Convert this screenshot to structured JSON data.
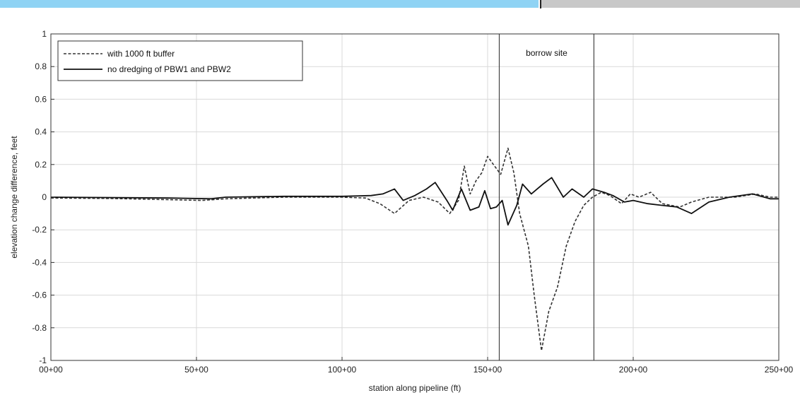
{
  "chart_data": {
    "type": "line",
    "xlabel": "station along pipeline (ft)",
    "ylabel": "elevation change difference, feet",
    "xlim": [
      0,
      25000
    ],
    "ylim": [
      -1,
      1
    ],
    "x_ticks": [
      {
        "value": 0,
        "label": "00+00"
      },
      {
        "value": 5000,
        "label": "50+00"
      },
      {
        "value": 10000,
        "label": "100+00"
      },
      {
        "value": 15000,
        "label": "150+00"
      },
      {
        "value": 20000,
        "label": "200+00"
      },
      {
        "value": 25000,
        "label": "250+00"
      }
    ],
    "y_ticks": [
      {
        "value": 1,
        "label": "1"
      },
      {
        "value": 0.8,
        "label": "0.8"
      },
      {
        "value": 0.6,
        "label": "0.6"
      },
      {
        "value": 0.4,
        "label": "0.4"
      },
      {
        "value": 0.2,
        "label": "0.2"
      },
      {
        "value": 0,
        "label": "0"
      },
      {
        "value": -0.2,
        "label": "-0.2"
      },
      {
        "value": -0.4,
        "label": "-0.4"
      },
      {
        "value": -0.6,
        "label": "-0.6"
      },
      {
        "value": -0.8,
        "label": "-0.8"
      },
      {
        "value": -1,
        "label": "-1"
      }
    ],
    "grid": true,
    "legend_position": "top-left",
    "annotations": [
      {
        "text": "borrow site",
        "x_start": 15400,
        "x_end": 18650
      }
    ],
    "vertical_lines": [
      15400,
      18650
    ],
    "series": [
      {
        "name": "with 1000 ft buffer",
        "style": "dashed",
        "color": "#333333",
        "points": [
          [
            0,
            -0.005
          ],
          [
            2000,
            -0.008
          ],
          [
            4000,
            -0.015
          ],
          [
            5200,
            -0.02
          ],
          [
            6000,
            -0.01
          ],
          [
            8000,
            0.0
          ],
          [
            10000,
            0.0
          ],
          [
            10800,
            -0.005
          ],
          [
            11300,
            -0.04
          ],
          [
            11800,
            -0.1
          ],
          [
            12300,
            -0.02
          ],
          [
            12800,
            0.0
          ],
          [
            13300,
            -0.03
          ],
          [
            13700,
            -0.1
          ],
          [
            14000,
            -0.02
          ],
          [
            14200,
            0.19
          ],
          [
            14400,
            0.02
          ],
          [
            14600,
            0.1
          ],
          [
            14800,
            0.15
          ],
          [
            15000,
            0.25
          ],
          [
            15200,
            0.2
          ],
          [
            15450,
            0.14
          ],
          [
            15700,
            0.3
          ],
          [
            15900,
            0.15
          ],
          [
            16100,
            -0.1
          ],
          [
            16400,
            -0.3
          ],
          [
            16600,
            -0.6
          ],
          [
            16850,
            -0.94
          ],
          [
            17100,
            -0.7
          ],
          [
            17400,
            -0.55
          ],
          [
            17700,
            -0.3
          ],
          [
            18000,
            -0.15
          ],
          [
            18300,
            -0.05
          ],
          [
            18600,
            0.0
          ],
          [
            18900,
            0.03
          ],
          [
            19200,
            0.01
          ],
          [
            19600,
            -0.04
          ],
          [
            19900,
            0.02
          ],
          [
            20200,
            0.0
          ],
          [
            20600,
            0.03
          ],
          [
            21000,
            -0.04
          ],
          [
            21600,
            -0.06
          ],
          [
            22000,
            -0.03
          ],
          [
            22600,
            0.0
          ],
          [
            23500,
            0.0
          ],
          [
            24200,
            0.02
          ],
          [
            24700,
            0.0
          ],
          [
            25000,
            0.0
          ]
        ]
      },
      {
        "name": "no dredging of PBW1 and PBW2",
        "style": "solid",
        "color": "#111111",
        "points": [
          [
            0,
            0.0
          ],
          [
            4000,
            -0.005
          ],
          [
            5500,
            -0.01
          ],
          [
            6000,
            0.0
          ],
          [
            8000,
            0.005
          ],
          [
            10000,
            0.005
          ],
          [
            11000,
            0.01
          ],
          [
            11400,
            0.02
          ],
          [
            11800,
            0.05
          ],
          [
            12100,
            -0.02
          ],
          [
            12500,
            0.01
          ],
          [
            12900,
            0.05
          ],
          [
            13200,
            0.09
          ],
          [
            13600,
            -0.02
          ],
          [
            13800,
            -0.08
          ],
          [
            14100,
            0.05
          ],
          [
            14400,
            -0.08
          ],
          [
            14700,
            -0.06
          ],
          [
            14900,
            0.04
          ],
          [
            15100,
            -0.07
          ],
          [
            15300,
            -0.06
          ],
          [
            15500,
            -0.02
          ],
          [
            15700,
            -0.17
          ],
          [
            16000,
            -0.05
          ],
          [
            16200,
            0.08
          ],
          [
            16500,
            0.02
          ],
          [
            16900,
            0.08
          ],
          [
            17200,
            0.12
          ],
          [
            17600,
            0.0
          ],
          [
            17900,
            0.05
          ],
          [
            18300,
            0.0
          ],
          [
            18600,
            0.05
          ],
          [
            19000,
            0.03
          ],
          [
            19300,
            0.01
          ],
          [
            19700,
            -0.03
          ],
          [
            20000,
            -0.02
          ],
          [
            20500,
            -0.04
          ],
          [
            21000,
            -0.05
          ],
          [
            21500,
            -0.06
          ],
          [
            22000,
            -0.1
          ],
          [
            22600,
            -0.03
          ],
          [
            23300,
            0.0
          ],
          [
            24100,
            0.02
          ],
          [
            24700,
            -0.01
          ],
          [
            25000,
            -0.01
          ]
        ]
      }
    ]
  }
}
